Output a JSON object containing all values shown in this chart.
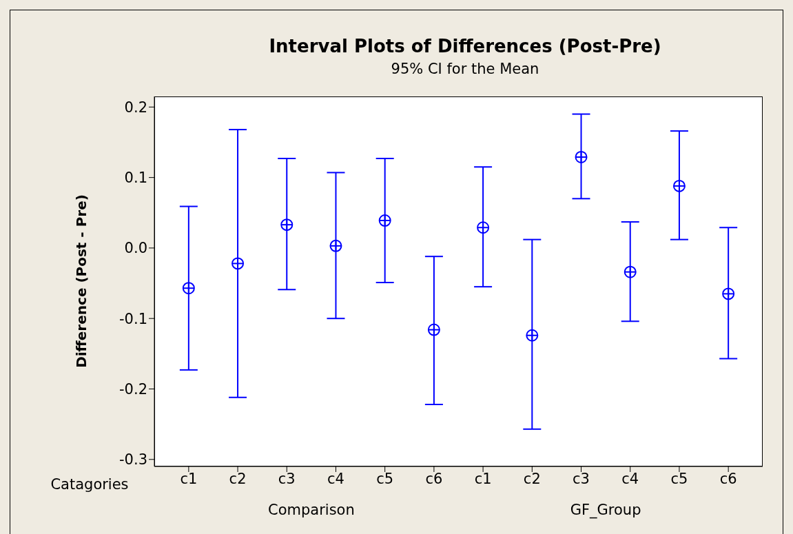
{
  "chart_data": {
    "type": "scatter",
    "title": "Interval Plots of Differences (Post-Pre)",
    "subtitle": "95% CI for the Mean",
    "xlabel": "Catagories",
    "ylabel": "Difference (Post - Pre)",
    "annotations": [
      "Comparison",
      "GF_Group"
    ],
    "categories": [
      "c1",
      "c2",
      "c3",
      "c4",
      "c5",
      "c6",
      "c1",
      "c2",
      "c3",
      "c4",
      "c5",
      "c6"
    ],
    "series": [
      {
        "color": "#0000ff",
        "values": [
          -0.057,
          -0.022,
          0.033,
          0.003,
          0.039,
          -0.116,
          0.029,
          -0.124,
          0.129,
          -0.034,
          0.088,
          -0.065
        ],
        "errors": [
          [
            -0.173,
            0.059
          ],
          [
            -0.212,
            0.168
          ],
          [
            -0.059,
            0.127
          ],
          [
            -0.1,
            0.107
          ],
          [
            -0.049,
            0.127
          ],
          [
            -0.222,
            -0.012
          ],
          [
            -0.055,
            0.115
          ],
          [
            -0.257,
            0.012
          ],
          [
            0.07,
            0.19
          ],
          [
            -0.104,
            0.037
          ],
          [
            0.012,
            0.166
          ],
          [
            -0.157,
            0.029
          ]
        ]
      }
    ],
    "ylim": [
      -0.31,
      0.215
    ],
    "yticks": [
      -0.3,
      -0.2,
      -0.1,
      {
        "value": 0,
        "label": "0.0"
      },
      0.1,
      0.2
    ],
    "marker": "circle"
  }
}
